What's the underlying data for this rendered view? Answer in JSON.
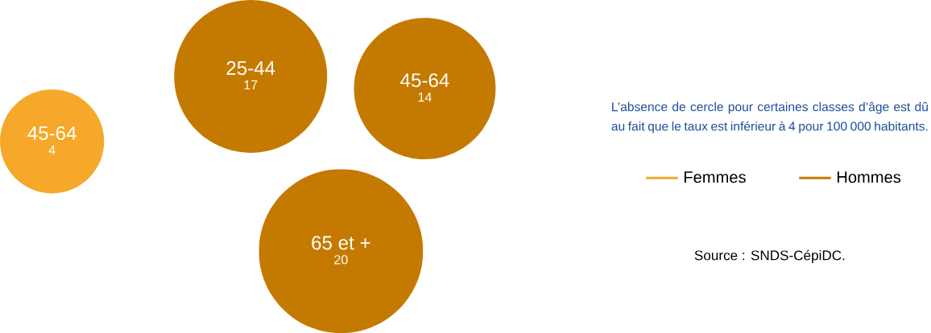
{
  "chart_data": {
    "type": "other",
    "categories": [
      "45-64",
      "25-44",
      "45-64",
      "65 et +"
    ],
    "series": [
      {
        "name": "Femmes",
        "color": "#f5a829",
        "values": [
          4,
          null,
          null,
          null
        ]
      },
      {
        "name": "Hommes",
        "color": "#c47a00",
        "values": [
          null,
          17,
          14,
          20
        ]
      }
    ],
    "legend": "right",
    "data_labels": true,
    "annotations": [
      "L’absence de cercle pour certaines classes d’âge est dû au fait que le taux est inférieur à 4 pour 100 000 habitants.",
      "Source : SNDS-CépiDC."
    ]
  }
}
